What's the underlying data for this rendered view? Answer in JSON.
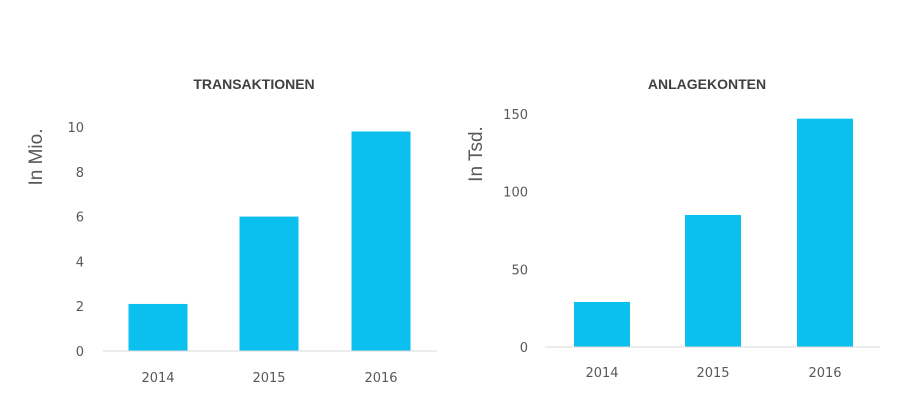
{
  "chart_data": [
    {
      "type": "bar",
      "title": "TRANSAKTIONEN",
      "ylabel": "In Mio.",
      "xlabel": "",
      "categories": [
        "2014",
        "2015",
        "2016"
      ],
      "values": [
        2.1,
        6.0,
        9.8
      ],
      "ylim": [
        0,
        10
      ],
      "yticks": [
        0,
        2,
        4,
        6,
        8,
        10
      ],
      "grid": false,
      "color": "#0BBFEF"
    },
    {
      "type": "bar",
      "title": "ANLAGEKONTEN",
      "ylabel": "In Tsd.",
      "xlabel": "",
      "categories": [
        "2014",
        "2015",
        "2016"
      ],
      "values": [
        29,
        85,
        147
      ],
      "ylim": [
        0,
        150
      ],
      "yticks": [
        0,
        50,
        100,
        150
      ],
      "grid": false,
      "color": "#0BBFEF"
    }
  ]
}
